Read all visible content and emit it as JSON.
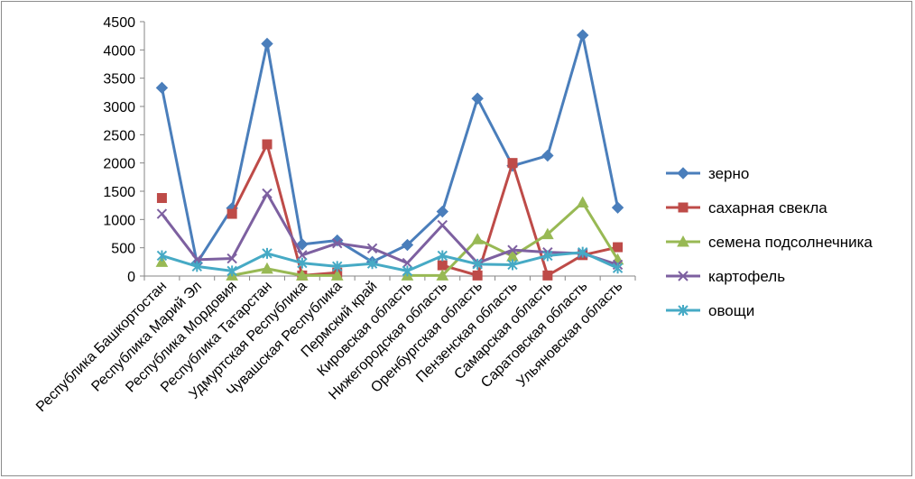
{
  "chart_data": {
    "type": "line",
    "ylim": [
      0,
      4500
    ],
    "yticks": [
      0,
      500,
      1000,
      1500,
      2000,
      2500,
      3000,
      3500,
      4000,
      4500
    ],
    "grid": false,
    "legend_position": "right",
    "categories": [
      "Республика Башкортостан",
      "Республика Марий Эл",
      "Республика Мордовия",
      "Республика Татарстан",
      "Удмуртская Республика",
      "Чувашская Республика",
      "Пермский край",
      "Кировская область",
      "Нижегородская область",
      "Оренбургская область",
      "Пензенская область",
      "Самарская область",
      "Саратовская область",
      "Ульяновская область"
    ],
    "series": [
      {
        "name": "зерно",
        "color": "#4a7ebb",
        "marker": "diamond",
        "values": [
          3330,
          230,
          1200,
          4110,
          560,
          630,
          250,
          550,
          1140,
          3140,
          1950,
          2130,
          4260,
          1210
        ]
      },
      {
        "name": "сахарная свекла",
        "color": "#be4b48",
        "marker": "square",
        "values": [
          1380,
          null,
          1100,
          2330,
          10,
          60,
          null,
          null,
          190,
          10,
          2000,
          10,
          370,
          510
        ]
      },
      {
        "name": "семена подсолнечника",
        "color": "#98b954",
        "marker": "triangle",
        "values": [
          250,
          null,
          10,
          130,
          10,
          10,
          null,
          10,
          10,
          650,
          350,
          740,
          1300,
          290
        ]
      },
      {
        "name": "картофель",
        "color": "#7d60a0",
        "marker": "x",
        "values": [
          1100,
          290,
          310,
          1460,
          370,
          580,
          490,
          230,
          900,
          230,
          460,
          420,
          400,
          200
        ]
      },
      {
        "name": "овощи",
        "color": "#46aac5",
        "marker": "star",
        "values": [
          360,
          170,
          90,
          400,
          230,
          170,
          220,
          90,
          360,
          210,
          200,
          360,
          420,
          140
        ]
      }
    ]
  }
}
